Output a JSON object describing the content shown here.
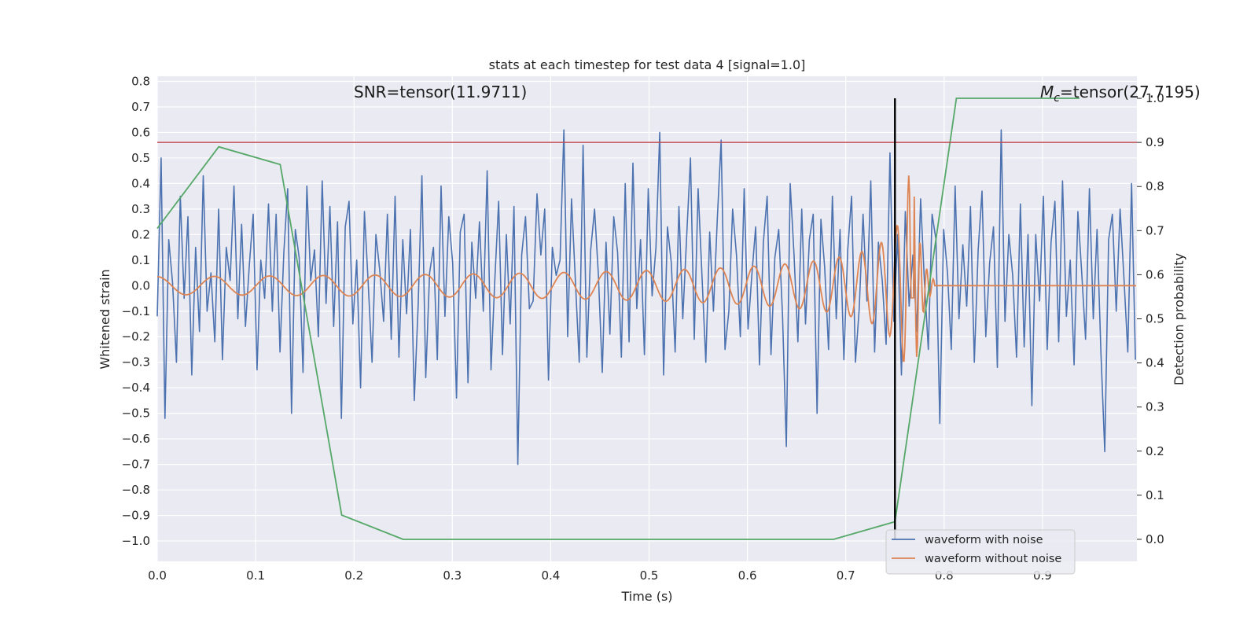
{
  "chart_data": {
    "type": "line",
    "title": "stats at each timestep for test data 4 [signal=1.0]",
    "xlabel": "Time (s)",
    "ylabel": "Whitened strain",
    "ylabel_right": "Detection probability",
    "xlim": [
      0.0,
      0.996
    ],
    "ylim": [
      -1.08,
      0.82
    ],
    "ylim_right": [
      -0.05,
      1.05
    ],
    "x_ticks": [
      "0.0",
      "0.1",
      "0.2",
      "0.3",
      "0.4",
      "0.5",
      "0.6",
      "0.7",
      "0.8",
      "0.9"
    ],
    "y_ticks": [
      "0.8",
      "0.7",
      "0.6",
      "0.5",
      "0.4",
      "0.3",
      "0.2",
      "0.1",
      "0.0",
      "−0.1",
      "−0.2",
      "−0.3",
      "−0.4",
      "−0.5",
      "−0.6",
      "−0.7",
      "−0.8",
      "−0.9",
      "−1.0"
    ],
    "y_ticks_right": [
      "0.0",
      "0.1",
      "0.2",
      "0.3",
      "0.4",
      "0.5",
      "0.6",
      "0.7",
      "0.8",
      "0.9",
      "1.0"
    ],
    "grid": true,
    "legend_position": "lower-right",
    "annotations": {
      "snr": "SNR=tensor(11.9711)",
      "mc_symbol": "M",
      "mc_subscript": "c",
      "mc_rest": "=tensor(27.7195)"
    },
    "series": [
      {
        "name": "waveform with noise",
        "color": "#4c72b0",
        "axis": "left",
        "x_start": 0.0,
        "x_step": 0.0039,
        "y": [
          -0.12,
          0.5,
          -0.52,
          0.18,
          0.01,
          -0.3,
          0.35,
          -0.05,
          0.27,
          -0.35,
          0.15,
          -0.18,
          0.43,
          -0.1,
          0.05,
          -0.22,
          0.3,
          -0.29,
          0.15,
          0.02,
          0.39,
          -0.13,
          0.24,
          -0.16,
          0.08,
          0.28,
          -0.33,
          0.1,
          -0.05,
          0.32,
          -0.1,
          0.28,
          -0.26,
          0.13,
          0.38,
          -0.5,
          0.22,
          0.11,
          -0.34,
          0.39,
          0.02,
          0.14,
          -0.2,
          0.41,
          -0.07,
          0.31,
          -0.16,
          0.25,
          -0.52,
          0.23,
          0.33,
          -0.15,
          0.1,
          -0.4,
          0.29,
          0.01,
          -0.3,
          0.2,
          0.06,
          -0.14,
          0.28,
          -0.21,
          0.35,
          -0.28,
          0.18,
          -0.11,
          0.22,
          -0.45,
          -0.08,
          0.43,
          -0.36,
          0.05,
          0.15,
          -0.29,
          0.39,
          -0.12,
          0.27,
          0.09,
          -0.44,
          0.21,
          0.28,
          -0.38,
          0.17,
          -0.05,
          0.25,
          -0.1,
          0.45,
          -0.33,
          0.02,
          0.33,
          -0.27,
          0.2,
          -0.15,
          0.31,
          -0.7,
          0.12,
          0.27,
          -0.09,
          -0.06,
          0.36,
          0.12,
          0.3,
          -0.37,
          0.15,
          0.04,
          0.1,
          0.61,
          -0.2,
          0.34,
          0.02,
          -0.3,
          0.55,
          -0.28,
          0.14,
          0.3,
          0.04,
          -0.34,
          0.17,
          -0.19,
          0.27,
          0.13,
          -0.28,
          0.4,
          -0.22,
          0.48,
          -0.09,
          0.18,
          -0.27,
          0.38,
          -0.04,
          0.15,
          0.6,
          -0.35,
          0.23,
          0.09,
          -0.26,
          0.31,
          -0.13,
          0.19,
          0.5,
          -0.21,
          0.38,
          0.04,
          -0.3,
          0.21,
          -0.1,
          0.26,
          0.57,
          -0.25,
          -0.1,
          0.3,
          0.12,
          -0.2,
          0.38,
          -0.17,
          0.04,
          0.23,
          -0.31,
          0.17,
          0.35,
          -0.27,
          0.11,
          0.22,
          -0.12,
          -0.63,
          0.4,
          0.12,
          -0.22,
          0.3,
          -0.15,
          0.18,
          0.28,
          -0.5,
          0.26,
          0.07,
          -0.25,
          0.35,
          -0.13,
          0.22,
          -0.29,
          0.14,
          0.35,
          -0.3,
          -0.09,
          0.28,
          -0.06,
          0.41,
          -0.26,
          0.17,
          0.02,
          -0.23,
          0.52,
          -0.14,
          0.2,
          -0.35,
          0.29,
          -0.08,
          0.12,
          -0.18,
          0.34,
          0.01,
          -0.25,
          0.28,
          0.18,
          -0.54,
          0.22,
          0.05,
          -0.25,
          0.39,
          -0.13,
          0.16,
          -0.08,
          0.31,
          -0.3,
          0.14,
          0.37,
          -0.2,
          0.09,
          0.23,
          -0.32,
          0.61,
          -0.14,
          0.2,
          0.04,
          -0.28,
          0.32,
          -0.24,
          0.2,
          -0.47,
          0.2,
          -0.06,
          0.35,
          -0.25,
          0.17,
          0.33,
          -0.22,
          0.41,
          -0.12,
          0.1,
          -0.31,
          0.29,
          0.05,
          -0.21,
          0.38,
          -0.13,
          0.22,
          -0.26,
          -0.65,
          0.18,
          0.28,
          -0.1,
          0.3,
          0.03,
          -0.26,
          0.4,
          -0.29,
          0.11,
          0.21,
          0.09,
          -0.4,
          0.3,
          -0.12,
          0.49,
          -0.18,
          0.25,
          0.02,
          -0.33,
          0.21,
          0.35,
          -0.13,
          0.16,
          -0.28,
          0.34,
          -0.06,
          0.45,
          -0.24,
          0.2,
          0.12,
          -0.35,
          0.31,
          -0.09,
          -0.5,
          0.37,
          -0.2,
          0.17,
          0.05,
          0.36,
          -0.33,
          0.11,
          -0.12,
          0.28,
          0.16,
          -0.31,
          0.35,
          -0.03,
          0.19,
          -0.24,
          0.31,
          0.02,
          -0.29,
          0.14,
          0.43,
          -0.18,
          0.08,
          0.33,
          -0.28,
          -0.61,
          0.26,
          -0.03,
          0.4,
          -0.22,
          0.17,
          0.07,
          -0.24,
          0.53,
          -0.13,
          0.21,
          -0.33,
          0.27,
          0.08,
          -0.19,
          0.38,
          -0.11,
          0.15,
          -0.34,
          0.3,
          0.02,
          -0.2,
          0.36,
          -0.05,
          0.26,
          -0.31,
          0.44,
          -0.16,
          0.18,
          -0.69,
          0.29,
          -0.04,
          0.24,
          0.1,
          -0.27,
          0.33,
          -0.15,
          0.19,
          0.48,
          -0.3,
          0.16,
          -0.09,
          0.34,
          -0.22,
          0.08,
          0.29,
          -0.12,
          -0.63,
          0.27,
          0.05,
          0.53,
          -0.21,
          0.3,
          -0.13,
          0.16,
          -0.31,
          0.25,
          0.38,
          -0.2,
          0.14,
          -0.36,
          0.43,
          -0.02,
          0.22,
          -0.24,
          0.13,
          -0.54,
          0.35,
          0.07,
          -0.27,
          0.23,
          -0.1,
          0.68,
          -0.42,
          0.3,
          -0.1,
          0.72,
          -0.56,
          0.45,
          -0.18,
          0.6,
          -0.3,
          0.35,
          0.62,
          -0.75,
          0.33,
          -0.2,
          0.55,
          -0.4,
          -0.98,
          0.4,
          -0.2,
          0.6,
          -0.35,
          0.25,
          0.5,
          -0.3,
          0.2,
          -0.1,
          0.35,
          -0.25,
          0.45,
          -0.05,
          0.15,
          0.62,
          -0.32,
          0.2,
          -0.15,
          0.3,
          -0.22,
          0.17,
          0.38,
          -0.15,
          0.08,
          -0.35,
          0.3,
          0.12,
          -0.2,
          0.26,
          -0.3,
          0.14,
          0.4,
          -0.28,
          0.2,
          -0.08,
          0.33,
          -0.18,
          -0.5,
          0.25,
          0.06,
          -0.31,
          0.37,
          -0.1,
          0.22,
          -0.26,
          0.15,
          0.02,
          -0.19,
          0.34,
          -0.14,
          0.27,
          -0.38,
          0.11,
          0.3,
          -0.23,
          -0.05,
          0.36,
          -0.17,
          0.21,
          -0.3,
          0.08,
          0.25,
          -0.12,
          0.33,
          -0.27,
          0.15,
          -0.05,
          0.28,
          -0.44,
          0.19,
          0.04,
          -0.2,
          0.3,
          -0.15,
          0.37,
          -0.23,
          0.12,
          -0.07,
          0.29,
          -0.16,
          0.22,
          -0.7,
          0.24,
          0.13,
          -0.26,
          0.35,
          -0.09,
          0.17,
          -0.31,
          0.26,
          0.05,
          -0.22,
          0.29,
          -0.13,
          0.19,
          -0.35,
          0.33,
          -0.04,
          0.16,
          -0.24,
          0.28,
          -0.5,
          0.14,
          0.31,
          -0.2,
          0.23,
          -0.11,
          0.09,
          0.2,
          -0.35,
          0.12,
          -0.1,
          0.2,
          -0.63
        ]
      },
      {
        "name": "waveform without noise",
        "color": "#dd8452",
        "axis": "left",
        "chirp_parameters": {
          "start_frequency_hz": 17,
          "amplitude_start": 0.035,
          "merger_time_s": 0.769,
          "ringdown_end_s": 0.79,
          "post_merger_level": 0.0
        }
      },
      {
        "name": "",
        "color": "#55a868",
        "axis": "right",
        "x": [
          0.0,
          0.0625,
          0.125,
          0.1875,
          0.25,
          0.3125,
          0.375,
          0.4375,
          0.5,
          0.5625,
          0.625,
          0.6875,
          0.75,
          0.8125,
          0.875,
          0.9375
        ],
        "y": [
          0.705,
          0.89,
          0.85,
          0.055,
          0.0,
          0.0,
          0.0,
          0.0,
          0.0,
          0.0,
          0.0,
          0.0,
          0.04,
          1.0,
          1.0,
          1.0
        ]
      }
    ],
    "reference_lines": [
      {
        "orientation": "horizontal",
        "axis": "right",
        "value": 0.9,
        "color": "#c44e52"
      },
      {
        "orientation": "vertical",
        "value": 0.75,
        "color": "#000000",
        "range_right": [
          0.0,
          1.0
        ]
      }
    ]
  }
}
